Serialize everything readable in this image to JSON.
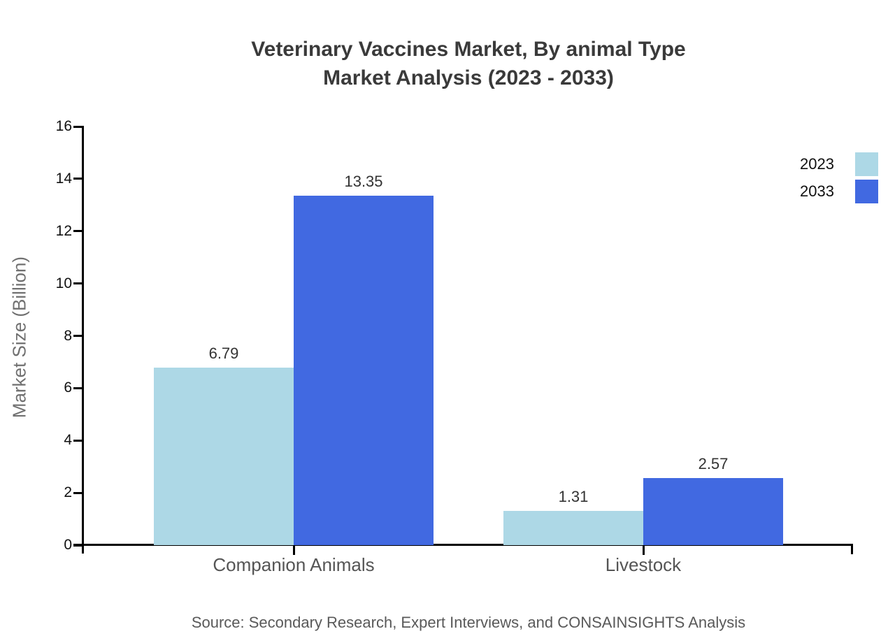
{
  "title": {
    "line1": "Veterinary Vaccines Market, By animal Type",
    "line2": "Market Analysis (2023 - 2033)"
  },
  "source": "Source: Secondary Research, Expert Interviews, and CONSAINSIGHTS Analysis",
  "legend": {
    "position": "top-right",
    "entries": [
      {
        "label": "2023",
        "color": "#ADD8E6"
      },
      {
        "label": "2033",
        "color": "#4169E1"
      }
    ]
  },
  "chart_data": {
    "type": "bar",
    "categories": [
      "Companion Animals",
      "Livestock"
    ],
    "series": [
      {
        "name": "2023",
        "color": "#ADD8E6",
        "values": [
          6.79,
          1.31
        ]
      },
      {
        "name": "2033",
        "color": "#4169E1",
        "values": [
          13.35,
          2.57
        ]
      }
    ],
    "value_labels": [
      [
        "6.79",
        "1.31"
      ],
      [
        "13.35",
        "2.57"
      ]
    ],
    "title": "Veterinary Vaccines Market, By animal Type Market Analysis (2023 - 2033)",
    "xlabel": "",
    "ylabel": "Market Size (Billion)",
    "ylim": [
      0,
      16
    ],
    "yticks": [
      0,
      2,
      4,
      6,
      8,
      10,
      12,
      14,
      16
    ],
    "grid": false,
    "legend_position": "top-right"
  },
  "colors": {
    "series_2023": "#ADD8E6",
    "series_2033": "#4169E1",
    "axis": "#000000",
    "title_text": "#3a3a3a",
    "tick_text": "#111111",
    "category_text": "#555555",
    "value_text": "#333333",
    "source_text": "#595959",
    "background": "#ffffff"
  }
}
